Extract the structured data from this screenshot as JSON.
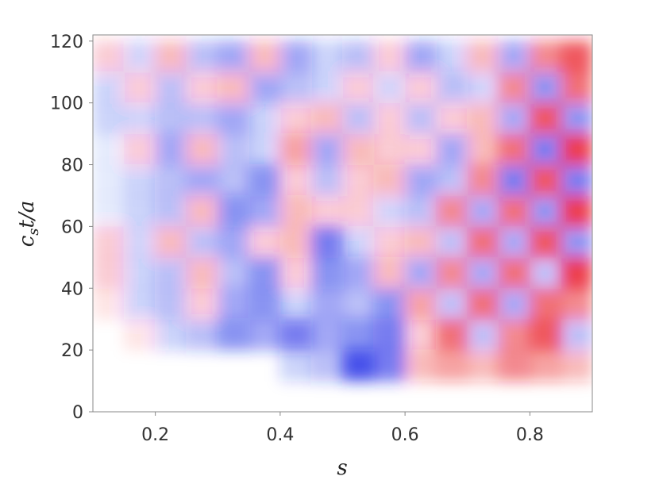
{
  "chart_data": {
    "type": "heatmap",
    "x_label": "s",
    "y_label": [
      "c",
      "s",
      "t/a"
    ],
    "xlim": [
      0.1,
      0.9
    ],
    "ylim": [
      0,
      122
    ],
    "xticks": [
      0.2,
      0.4,
      0.6,
      0.8
    ],
    "yticks": [
      0,
      20,
      40,
      60,
      80,
      100,
      120
    ],
    "xbins": [
      0.1,
      0.15,
      0.2,
      0.25,
      0.3,
      0.35,
      0.4,
      0.45,
      0.5,
      0.55,
      0.6,
      0.65,
      0.7,
      0.75,
      0.8,
      0.85,
      0.9
    ],
    "ybins": [
      0,
      10,
      20,
      30,
      40,
      50,
      60,
      70,
      80,
      90,
      100,
      110,
      120
    ],
    "positive_color": "#e8141e",
    "negative_color": "#1a28e6",
    "values": [
      [
        0,
        0,
        0,
        0,
        0,
        0,
        0,
        0,
        0,
        0,
        0,
        0,
        0,
        0,
        0,
        0
      ],
      [
        0,
        0,
        0,
        0,
        0,
        0,
        -0.2,
        -0.3,
        -0.8,
        -0.6,
        0.3,
        0.4,
        0.3,
        0.5,
        0.4,
        0.3
      ],
      [
        0,
        0.1,
        -0.2,
        -0.3,
        -0.5,
        -0.4,
        -0.6,
        -0.4,
        -0.5,
        -0.6,
        0.2,
        0.6,
        -0.3,
        0.5,
        0.7,
        -0.3
      ],
      [
        0.1,
        -0.2,
        -0.3,
        0.2,
        -0.4,
        -0.5,
        -0.2,
        -0.4,
        -0.3,
        -0.5,
        0.4,
        -0.3,
        0.6,
        -0.4,
        0.6,
        0.5
      ],
      [
        0.2,
        -0.2,
        -0.3,
        0.3,
        -0.3,
        -0.5,
        0.2,
        -0.5,
        -0.4,
        0.3,
        -0.4,
        0.5,
        -0.4,
        0.6,
        -0.3,
        0.8
      ],
      [
        0.2,
        -0.2,
        0.3,
        -0.3,
        -0.4,
        0.2,
        0.3,
        -0.6,
        -0.2,
        0.2,
        0.3,
        -0.3,
        0.6,
        -0.4,
        0.7,
        -0.5
      ],
      [
        -0.1,
        -0.2,
        -0.3,
        0.3,
        -0.5,
        -0.4,
        0.3,
        0.2,
        0.2,
        -0.2,
        -0.3,
        0.5,
        -0.4,
        0.6,
        -0.5,
        0.8
      ],
      [
        -0.1,
        -0.2,
        -0.3,
        -0.4,
        -0.3,
        -0.5,
        0.2,
        -0.3,
        0.2,
        0.3,
        -0.4,
        -0.3,
        0.5,
        -0.6,
        0.7,
        -0.6
      ],
      [
        -0.1,
        0.2,
        -0.4,
        0.3,
        -0.3,
        -0.2,
        0.4,
        -0.4,
        0.3,
        0.2,
        0.2,
        -0.4,
        0.3,
        0.6,
        -0.6,
        0.8
      ],
      [
        -0.2,
        -0.2,
        -0.3,
        -0.3,
        -0.4,
        -0.2,
        0.2,
        0.3,
        -0.3,
        0.2,
        -0.3,
        0.2,
        0.3,
        -0.4,
        0.7,
        -0.5
      ],
      [
        -0.2,
        0.2,
        -0.3,
        0.2,
        0.3,
        -0.4,
        -0.3,
        -0.2,
        0.2,
        -0.2,
        0.2,
        -0.3,
        -0.2,
        0.5,
        -0.5,
        0.6
      ],
      [
        0.2,
        -0.2,
        0.3,
        -0.3,
        -0.4,
        0.3,
        -0.4,
        -0.2,
        -0.3,
        0.2,
        -0.4,
        -0.2,
        0.3,
        -0.4,
        0.5,
        0.7
      ]
    ]
  }
}
